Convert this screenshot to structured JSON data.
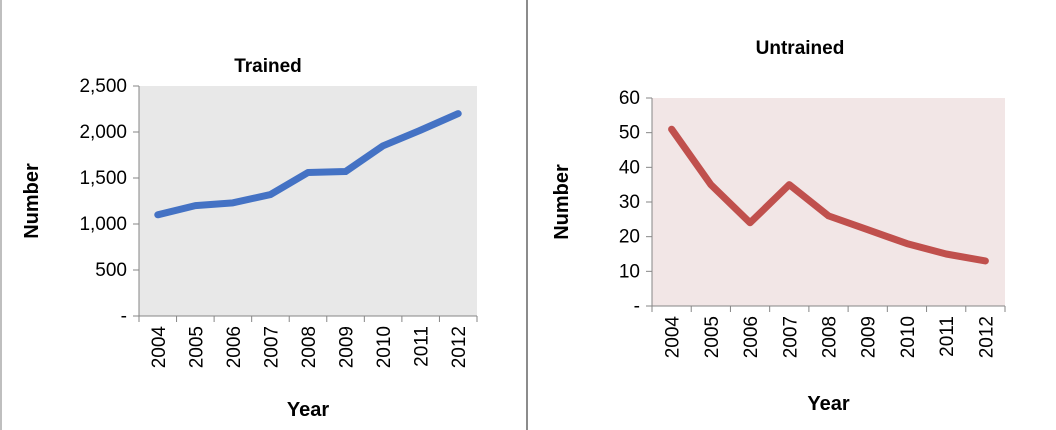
{
  "chart_data": [
    {
      "type": "line",
      "title": "Trained",
      "xlabel": "Year",
      "ylabel": "Number",
      "categories": [
        "2004",
        "2005",
        "2006",
        "2007",
        "2008",
        "2009",
        "2010",
        "2011",
        "2012"
      ],
      "series": [
        {
          "values": [
            1100,
            1200,
            1230,
            1320,
            1560,
            1570,
            1850,
            2020,
            2200
          ]
        }
      ],
      "ylim": [
        0,
        2500
      ],
      "yticks": [
        0,
        500,
        1000,
        1500,
        2000,
        2500
      ],
      "ytick_labels": [
        "-",
        "500",
        "1,000",
        "1,500",
        "2,000",
        "2,500"
      ],
      "line_color": "#4472c4",
      "plot_bg": "#e8e8e8",
      "grid": false,
      "legend": "none"
    },
    {
      "type": "line",
      "title": "Untrained",
      "xlabel": "Year",
      "ylabel": "Number",
      "categories": [
        "2004",
        "2005",
        "2006",
        "2007",
        "2008",
        "2009",
        "2010",
        "2011",
        "2012"
      ],
      "series": [
        {
          "values": [
            51,
            35,
            24,
            35,
            26,
            22,
            18,
            15,
            13
          ]
        }
      ],
      "ylim": [
        0,
        60
      ],
      "yticks": [
        0,
        10,
        20,
        30,
        40,
        50,
        60
      ],
      "ytick_labels": [
        "-",
        "10",
        "20",
        "30",
        "40",
        "50",
        "60"
      ],
      "line_color": "#c0504d",
      "plot_bg": "#f2e6e6",
      "grid": false,
      "legend": "none"
    }
  ]
}
